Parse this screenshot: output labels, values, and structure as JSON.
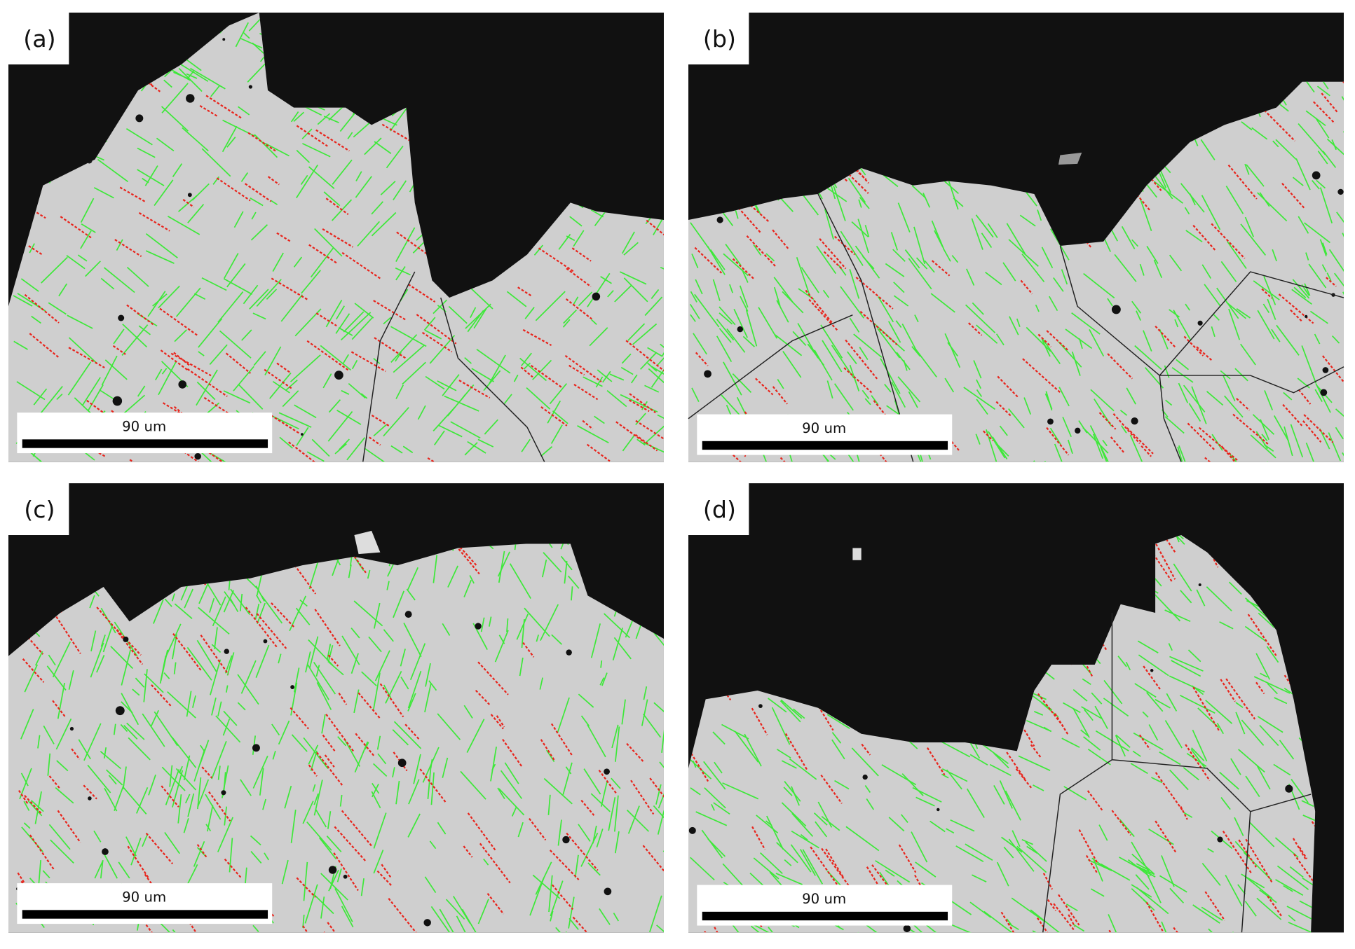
{
  "panels": [
    {
      "label": "(a)",
      "scale_bar": "90 um"
    },
    {
      "label": "(b)",
      "scale_bar": "90 um"
    },
    {
      "label": "(c)",
      "scale_bar": "90 um"
    },
    {
      "label": "(d)",
      "scale_bar": "90 um"
    }
  ]
}
